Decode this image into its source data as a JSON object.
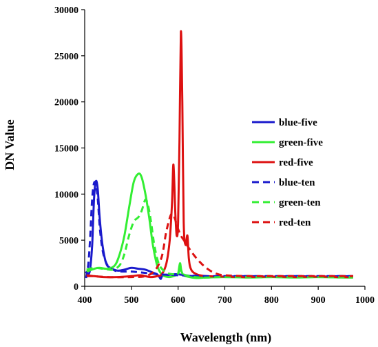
{
  "chart_data": {
    "type": "line",
    "title": "",
    "xlabel": "Wavelength (nm)",
    "ylabel": "DN Value",
    "xlim": [
      400,
      1000
    ],
    "ylim": [
      0,
      30000
    ],
    "xticks": [
      400,
      500,
      600,
      700,
      800,
      900,
      1000
    ],
    "yticks": [
      0,
      5000,
      10000,
      15000,
      20000,
      25000,
      30000
    ],
    "grid": false,
    "legend_position": "right",
    "series": [
      {
        "name": "blue-five",
        "color": "#1a1acc",
        "dash": "solid",
        "points": [
          [
            402,
            1600
          ],
          [
            408,
            1300
          ],
          [
            412,
            2000
          ],
          [
            416,
            4500
          ],
          [
            420,
            9500
          ],
          [
            424,
            11400
          ],
          [
            428,
            10500
          ],
          [
            432,
            7500
          ],
          [
            438,
            4500
          ],
          [
            446,
            2500
          ],
          [
            455,
            2000
          ],
          [
            470,
            1700
          ],
          [
            485,
            1800
          ],
          [
            500,
            2000
          ],
          [
            515,
            1900
          ],
          [
            530,
            1800
          ],
          [
            545,
            1500
          ],
          [
            555,
            1300
          ],
          [
            560,
            1000
          ],
          [
            563,
            800
          ],
          [
            566,
            1100
          ],
          [
            575,
            1200
          ],
          [
            590,
            1300
          ],
          [
            600,
            1300
          ],
          [
            615,
            1200
          ],
          [
            630,
            1100
          ],
          [
            660,
            1050
          ],
          [
            700,
            1050
          ],
          [
            750,
            1100
          ],
          [
            800,
            1050
          ],
          [
            850,
            1100
          ],
          [
            900,
            1050
          ],
          [
            950,
            1100
          ],
          [
            975,
            1050
          ]
        ]
      },
      {
        "name": "green-five",
        "color": "#33ee33",
        "dash": "solid",
        "points": [
          [
            404,
            1600
          ],
          [
            415,
            1800
          ],
          [
            430,
            2000
          ],
          [
            450,
            1900
          ],
          [
            465,
            2300
          ],
          [
            475,
            3500
          ],
          [
            485,
            5500
          ],
          [
            495,
            8500
          ],
          [
            505,
            11300
          ],
          [
            515,
            12200
          ],
          [
            522,
            11800
          ],
          [
            530,
            10000
          ],
          [
            538,
            7500
          ],
          [
            546,
            4500
          ],
          [
            555,
            2300
          ],
          [
            565,
            1300
          ],
          [
            580,
            1000
          ],
          [
            595,
            1200
          ],
          [
            600,
            1400
          ],
          [
            604,
            2500
          ],
          [
            607,
            1700
          ],
          [
            612,
            1200
          ],
          [
            625,
            1000
          ],
          [
            640,
            900
          ],
          [
            660,
            950
          ],
          [
            700,
            1000
          ],
          [
            750,
            950
          ],
          [
            800,
            1000
          ],
          [
            850,
            950
          ],
          [
            900,
            1000
          ],
          [
            950,
            950
          ],
          [
            975,
            950
          ]
        ]
      },
      {
        "name": "red-five",
        "color": "#dd1111",
        "dash": "solid",
        "points": [
          [
            404,
            1100
          ],
          [
            420,
            1100
          ],
          [
            440,
            1000
          ],
          [
            470,
            1000
          ],
          [
            500,
            1100
          ],
          [
            520,
            1200
          ],
          [
            540,
            1000
          ],
          [
            555,
            1100
          ],
          [
            565,
            1300
          ],
          [
            575,
            2500
          ],
          [
            582,
            5000
          ],
          [
            587,
            9000
          ],
          [
            590,
            13200
          ],
          [
            594,
            8000
          ],
          [
            597,
            5500
          ],
          [
            600,
            7000
          ],
          [
            603,
            16000
          ],
          [
            606,
            27600
          ],
          [
            609,
            20000
          ],
          [
            612,
            7000
          ],
          [
            616,
            4500
          ],
          [
            620,
            5500
          ],
          [
            623,
            3000
          ],
          [
            628,
            1800
          ],
          [
            640,
            1300
          ],
          [
            660,
            1100
          ],
          [
            700,
            1050
          ],
          [
            750,
            1000
          ],
          [
            800,
            1050
          ],
          [
            850,
            1000
          ],
          [
            900,
            1050
          ],
          [
            950,
            1000
          ],
          [
            975,
            1000
          ]
        ]
      },
      {
        "name": "blue-ten",
        "color": "#1a1acc",
        "dash": "dashed",
        "points": [
          [
            403,
            900
          ],
          [
            408,
            2500
          ],
          [
            412,
            5500
          ],
          [
            416,
            9500
          ],
          [
            420,
            11200
          ],
          [
            424,
            11000
          ],
          [
            428,
            9500
          ],
          [
            433,
            6000
          ],
          [
            440,
            3500
          ],
          [
            450,
            2200
          ],
          [
            465,
            1700
          ],
          [
            480,
            1600
          ],
          [
            500,
            1600
          ],
          [
            520,
            1500
          ],
          [
            540,
            1400
          ],
          [
            560,
            1300
          ],
          [
            580,
            1250
          ],
          [
            600,
            1200
          ],
          [
            630,
            1150
          ],
          [
            660,
            1100
          ],
          [
            700,
            1100
          ],
          [
            800,
            1100
          ],
          [
            900,
            1100
          ],
          [
            975,
            1100
          ]
        ]
      },
      {
        "name": "green-ten",
        "color": "#33ee33",
        "dash": "dashed",
        "points": [
          [
            404,
            1800
          ],
          [
            420,
            2000
          ],
          [
            440,
            1900
          ],
          [
            460,
            1800
          ],
          [
            475,
            2300
          ],
          [
            485,
            3500
          ],
          [
            495,
            5500
          ],
          [
            505,
            7000
          ],
          [
            515,
            7500
          ],
          [
            522,
            8200
          ],
          [
            530,
            9400
          ],
          [
            536,
            8700
          ],
          [
            542,
            7000
          ],
          [
            550,
            4200
          ],
          [
            560,
            2300
          ],
          [
            575,
            1500
          ],
          [
            590,
            1300
          ],
          [
            600,
            1400
          ],
          [
            605,
            1800
          ],
          [
            612,
            1300
          ],
          [
            625,
            1100
          ],
          [
            650,
            950
          ],
          [
            700,
            1000
          ],
          [
            800,
            1000
          ],
          [
            900,
            1000
          ],
          [
            975,
            1000
          ]
        ]
      },
      {
        "name": "red-ten",
        "color": "#dd1111",
        "dash": "dashed",
        "points": [
          [
            404,
            1200
          ],
          [
            420,
            1100
          ],
          [
            450,
            1000
          ],
          [
            500,
            1000
          ],
          [
            530,
            1100
          ],
          [
            550,
            1700
          ],
          [
            565,
            3200
          ],
          [
            575,
            6000
          ],
          [
            585,
            7800
          ],
          [
            592,
            7500
          ],
          [
            598,
            6500
          ],
          [
            606,
            5500
          ],
          [
            615,
            4800
          ],
          [
            625,
            4000
          ],
          [
            640,
            3000
          ],
          [
            660,
            2000
          ],
          [
            680,
            1400
          ],
          [
            700,
            1200
          ],
          [
            750,
            1100
          ],
          [
            800,
            1100
          ],
          [
            900,
            1100
          ],
          [
            975,
            1100
          ]
        ]
      }
    ]
  }
}
